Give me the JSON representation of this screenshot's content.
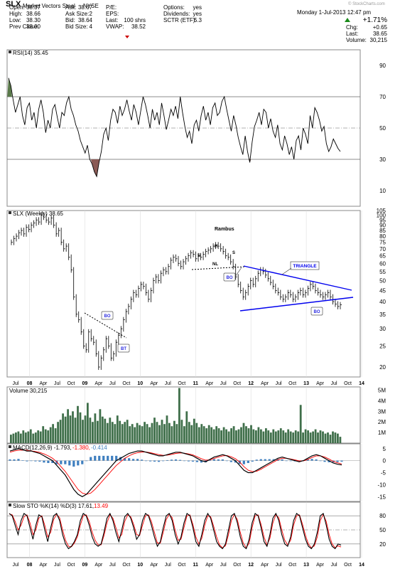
{
  "header": {
    "symbol": "SLX",
    "name": "Market Vectors Steel",
    "exchange": "NYSE",
    "date": "Monday   1-Jul-2013  12:47 pm",
    "watermark": "© StockCharts.com",
    "quote": [
      {
        "label": "Open:",
        "value": "38.37"
      },
      {
        "label": "High:",
        "value": "38.66"
      },
      {
        "label": "Low:",
        "value": "38.30"
      },
      {
        "label": "Prev Close:",
        "value": "38.00"
      }
    ],
    "book": [
      {
        "label": "Ask:",
        "value": "38.67"
      },
      {
        "label": "Ask Size:",
        "value": "2"
      },
      {
        "label": "Bid:",
        "value": "38.64"
      },
      {
        "label": "Bid Size:",
        "value": "4"
      }
    ],
    "fund": [
      {
        "label": "P/E:",
        "value": ""
      },
      {
        "label": "EPS:",
        "value": ""
      },
      {
        "label": "Last:",
        "value": "100 shrs"
      },
      {
        "label": "VWAP:",
        "value": "38.52"
      }
    ],
    "opts": [
      {
        "label": "Options:",
        "value": "yes"
      },
      {
        "label": "Dividends:",
        "value": "yes"
      },
      {
        "label": "SCTR (ETF):",
        "value": "5.3"
      }
    ],
    "change_pct": "+1.71%",
    "summary": [
      {
        "label": "Chg:",
        "value": "+0.65"
      },
      {
        "label": "Last:",
        "value": "38.65"
      },
      {
        "label": "Volume:",
        "value": "30,215"
      }
    ],
    "colors": {
      "up": "#1a8a1a",
      "down": "#cc0000"
    }
  },
  "chart_data": [
    {
      "type": "line",
      "panel": "rsi",
      "title": "RSI(14) 35.45",
      "ylim": [
        0,
        100
      ],
      "ticks": [
        10,
        30,
        50,
        70,
        90
      ],
      "reference_lines": [
        30,
        50,
        70
      ],
      "overbought_fill_color": "#5a7a4a",
      "oversold_fill_color": "#8a5a55",
      "values": [
        82,
        77,
        68,
        60,
        65,
        70,
        58,
        52,
        63,
        66,
        55,
        60,
        50,
        62,
        68,
        60,
        47,
        55,
        50,
        62,
        65,
        57,
        50,
        60,
        58,
        66,
        70,
        62,
        58,
        52,
        48,
        42,
        38,
        34,
        39,
        30,
        27,
        22,
        19,
        28,
        35,
        46,
        50,
        42,
        55,
        62,
        60,
        53,
        64,
        58,
        62,
        68,
        61,
        55,
        65,
        60,
        52,
        61,
        70,
        65,
        58,
        50,
        62,
        55,
        60,
        52,
        66,
        58,
        49,
        55,
        62,
        58,
        64,
        56,
        70,
        60,
        51,
        44,
        48,
        40,
        52,
        55,
        48,
        58,
        64,
        55,
        60,
        52,
        63,
        66,
        58,
        60,
        67,
        70,
        62,
        55,
        48,
        58,
        52,
        44,
        38,
        33,
        45,
        35,
        28,
        41,
        51,
        55,
        60,
        52,
        62,
        60,
        50,
        56,
        48,
        44,
        52,
        40,
        36,
        45,
        40,
        33,
        38,
        30,
        42,
        45,
        36,
        50,
        46,
        40,
        58,
        50,
        63,
        60,
        55,
        48,
        51,
        40,
        35,
        38,
        43,
        40,
        37,
        35
      ],
      "last_label": "35.45"
    },
    {
      "type": "bar",
      "panel": "price",
      "title": "SLX (Weekly) 38.65",
      "scale": "log",
      "ylim": [
        18,
        105
      ],
      "ticks": [
        20,
        25,
        30,
        35,
        40,
        45,
        50,
        55,
        60,
        65,
        70,
        75,
        80,
        85,
        90,
        95,
        100,
        105
      ],
      "closes": [
        75,
        78,
        80,
        83,
        85,
        82,
        88,
        86,
        90,
        92,
        95,
        93,
        100,
        98,
        95,
        93,
        97,
        90,
        82,
        85,
        75,
        70,
        72,
        64,
        56,
        42,
        35,
        33,
        29,
        25,
        24,
        29,
        27,
        26,
        23,
        20,
        22,
        24,
        27,
        25,
        22,
        23,
        26,
        28,
        30,
        33,
        36,
        38,
        41,
        44,
        43,
        46,
        48,
        47,
        44,
        41,
        45,
        50,
        52,
        50,
        54,
        56,
        55,
        58,
        62,
        64,
        63,
        60,
        58,
        61,
        63,
        65,
        67,
        66,
        63,
        65,
        64,
        66,
        68,
        69,
        70,
        72,
        73,
        72,
        70,
        68,
        65,
        64,
        61,
        58,
        52,
        48,
        45,
        42,
        44,
        47,
        50,
        48,
        51,
        54,
        56,
        55,
        53,
        51,
        49,
        47,
        45,
        44,
        42,
        41,
        42,
        44,
        43,
        41,
        42,
        44,
        45,
        43,
        44,
        46,
        48,
        47,
        45,
        44,
        43,
        42,
        43,
        44,
        42,
        40,
        39,
        38,
        38.65
      ],
      "x_labels": [
        "Jul",
        "08",
        "Apr",
        "Jul",
        "Oct",
        "09",
        "Apr",
        "Jul",
        "Oct",
        "10",
        "Apr",
        "Jul",
        "Oct",
        "11",
        "Apr",
        "Jul",
        "Oct",
        "12",
        "Apr",
        "Jul",
        "Oct",
        "13",
        "Apr",
        "Jul",
        "Oct",
        "14"
      ],
      "annotations": [
        "Rambus",
        "S",
        "H",
        "S",
        "NL",
        "TRIANGLE",
        "BO",
        "BT",
        "BO",
        "BO"
      ],
      "line_color": "#0000ee",
      "neckline_color": "#000000"
    },
    {
      "type": "bar",
      "panel": "volume",
      "title": "Volume 30,215",
      "ticks": [
        "1M",
        "2M",
        "3M",
        "4M",
        "5M"
      ],
      "ylim": [
        0,
        5.3
      ],
      "values": [
        0.8,
        0.9,
        1.0,
        1.1,
        0.9,
        1.2,
        1.0,
        1.1,
        1.3,
        0.9,
        1.0,
        1.2,
        1.1,
        1.6,
        1.3,
        1.2,
        1.5,
        1.8,
        1.4,
        2.0,
        2.2,
        2.8,
        2.5,
        3.2,
        2.6,
        3.0,
        2.4,
        3.5,
        2.9,
        2.2,
        2.6,
        3.8,
        2.4,
        2.0,
        2.8,
        2.1,
        3.2,
        2.5,
        2.3,
        1.9,
        2.4,
        2.0,
        1.8,
        2.6,
        2.1,
        1.8,
        2.0,
        2.2,
        1.6,
        1.8,
        1.5,
        1.9,
        1.7,
        1.6,
        2.0,
        1.8,
        1.5,
        1.9,
        2.4,
        2.0,
        1.7,
        2.2,
        1.8,
        2.6,
        1.9,
        1.6,
        2.1,
        1.8,
        5.2,
        2.2,
        1.6,
        3.0,
        2.0,
        1.7,
        2.3,
        1.9,
        1.5,
        1.8,
        1.6,
        1.4,
        1.7,
        1.5,
        1.3,
        1.6,
        1.4,
        1.2,
        1.5,
        1.3,
        1.1,
        1.4,
        1.6,
        1.2,
        1.3,
        1.5,
        1.9,
        1.6,
        1.4,
        1.7,
        1.3,
        1.2,
        1.5,
        1.3,
        1.1,
        1.4,
        1.2,
        1.0,
        1.3,
        1.1,
        1.2,
        1.4,
        1.2,
        1.0,
        1.3,
        1.1,
        1.0,
        1.2,
        1.1,
        3.6,
        1.0,
        1.3,
        1.2,
        1.0,
        1.1,
        1.3,
        1.0,
        1.2,
        1.1,
        0.9,
        1.0,
        0.8,
        1.1,
        1.0,
        0.9,
        0.6
      ],
      "bar_color": "#3f6f4a"
    },
    {
      "type": "line",
      "panel": "macd",
      "title": "MACD(12,26,9) -1.793, -1.380, -0.414",
      "title_parts": {
        "base": "MACD(12,26,9) -1.793,",
        "signal": "-1.380,",
        "hist": "-0.414"
      },
      "ylim": [
        -17,
        7
      ],
      "ticks": [
        -15,
        -10,
        -5,
        0,
        5
      ],
      "macd": [
        4,
        4.5,
        5,
        4.5,
        4,
        4,
        3.5,
        3,
        2,
        1,
        0,
        -2,
        -4,
        -6,
        -9,
        -12,
        -14,
        -15,
        -14,
        -12,
        -10,
        -8,
        -6,
        -4,
        -2,
        0,
        1,
        2,
        3,
        3.5,
        4,
        4,
        3.5,
        3,
        2.5,
        2,
        2,
        2.5,
        3,
        3.5,
        3.5,
        3,
        2.5,
        2,
        1,
        0,
        -0.5,
        0.5,
        1.5,
        2,
        2.5,
        2,
        1,
        0,
        -2,
        -4,
        -5,
        -5,
        -4,
        -3,
        -2,
        -1,
        0,
        1,
        1.5,
        1,
        0.5,
        0,
        -0.5,
        0,
        1,
        2,
        2.5,
        2,
        1,
        0,
        -1,
        -1.5,
        -1.8
      ],
      "signal": [
        3.5,
        4,
        4.3,
        4.4,
        4.3,
        4.1,
        3.8,
        3.4,
        2.8,
        2,
        1,
        -0.5,
        -2.5,
        -4.5,
        -7,
        -9.5,
        -12,
        -13.5,
        -14,
        -13.5,
        -12,
        -10,
        -8,
        -6,
        -4,
        -2,
        -0.5,
        1,
        2,
        2.8,
        3.3,
        3.6,
        3.6,
        3.3,
        2.9,
        2.5,
        2.2,
        2.3,
        2.6,
        3,
        3.2,
        3.1,
        2.8,
        2.4,
        1.6,
        0.8,
        0.2,
        0.3,
        0.9,
        1.5,
        2,
        2.1,
        1.6,
        0.8,
        -0.6,
        -2.5,
        -4,
        -4.6,
        -4.4,
        -3.6,
        -2.6,
        -1.6,
        -0.6,
        0.4,
        1,
        1,
        0.7,
        0.3,
        -0.1,
        -0.1,
        0.5,
        1.3,
        2,
        2,
        1.5,
        0.7,
        -0.3,
        -0.9,
        -1.38
      ],
      "macd_color": "#000000",
      "signal_color": "#ff0000",
      "hist_color": "#3f7fbf"
    },
    {
      "type": "line",
      "panel": "sto",
      "title": "Slow STO %K(14) %D(3) 17.61, 13.49",
      "title_parts": {
        "base": "Slow STO %K(14) %D(3) 17.61,",
        "d": "13.49"
      },
      "ylim": [
        0,
        100
      ],
      "ticks": [
        20,
        50,
        80
      ],
      "reference_lines": [
        20,
        50,
        80
      ],
      "k": [
        85,
        80,
        60,
        40,
        70,
        85,
        80,
        55,
        30,
        60,
        82,
        78,
        50,
        25,
        55,
        80,
        85,
        70,
        40,
        20,
        10,
        15,
        25,
        40,
        70,
        85,
        80,
        60,
        35,
        20,
        15,
        20,
        45,
        75,
        85,
        70,
        45,
        25,
        50,
        78,
        85,
        75,
        55,
        30,
        40,
        70,
        85,
        80,
        60,
        35,
        15,
        25,
        55,
        80,
        85,
        70,
        40,
        20,
        35,
        65,
        85,
        80,
        55,
        25,
        15,
        40,
        70,
        85,
        75,
        50,
        25,
        15,
        10,
        20,
        50,
        80,
        85,
        65,
        35,
        15,
        10,
        30,
        65,
        85,
        80,
        55,
        25,
        15,
        40,
        75,
        85,
        70,
        40,
        20,
        15,
        35,
        70,
        85,
        80,
        55,
        30,
        15,
        10,
        20,
        45,
        80,
        85,
        60,
        30,
        15,
        10,
        20,
        17.61
      ],
      "d": [
        84,
        82,
        68,
        50,
        60,
        78,
        82,
        65,
        40,
        50,
        75,
        80,
        60,
        35,
        45,
        72,
        83,
        76,
        50,
        28,
        15,
        14,
        22,
        35,
        60,
        80,
        82,
        68,
        45,
        28,
        18,
        18,
        38,
        65,
        82,
        75,
        55,
        33,
        40,
        68,
        82,
        78,
        62,
        40,
        38,
        60,
        80,
        82,
        68,
        45,
        22,
        22,
        45,
        72,
        83,
        76,
        50,
        28,
        30,
        55,
        80,
        82,
        62,
        35,
        20,
        32,
        60,
        80,
        78,
        58,
        35,
        18,
        12,
        16,
        40,
        70,
        83,
        72,
        45,
        22,
        12,
        22,
        55,
        80,
        82,
        62,
        35,
        18,
        32,
        65,
        82,
        76,
        50,
        28,
        18,
        28,
        60,
        80,
        82,
        62,
        38,
        20,
        12,
        16,
        35,
        70,
        83,
        68,
        40,
        20,
        12,
        16,
        13.49
      ],
      "k_color": "#000000",
      "d_color": "#ff0000"
    }
  ]
}
